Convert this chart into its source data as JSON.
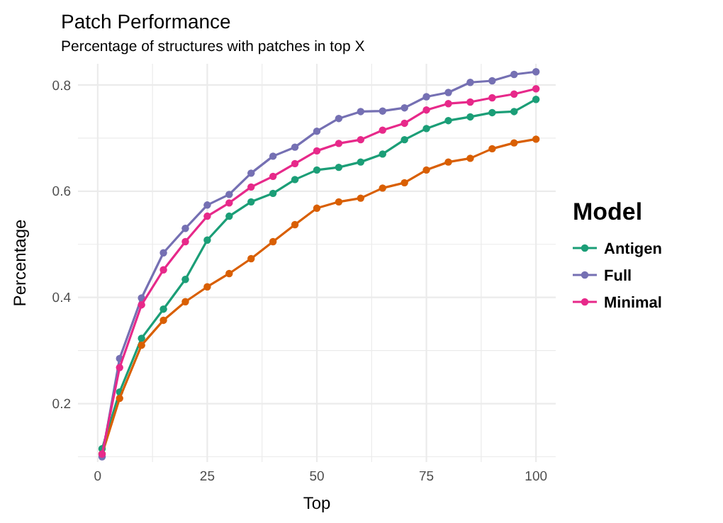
{
  "chart_data": {
    "type": "line",
    "title": "Patch Performance",
    "subtitle": "Percentage of structures with patches in top X",
    "xlabel": "Top",
    "ylabel": "Percentage",
    "legend_title": "Model",
    "legend": "right",
    "grid": true,
    "marker": "circle",
    "line_style": "solid",
    "x": [
      1,
      5,
      10,
      15,
      20,
      25,
      30,
      35,
      40,
      45,
      50,
      55,
      60,
      65,
      70,
      75,
      80,
      85,
      90,
      95,
      100
    ],
    "xlim": [
      -4.5,
      104.5
    ],
    "xticks": [
      0,
      {
        "value": 12.5,
        "label": null
      },
      25,
      {
        "value": 37.5,
        "label": null
      },
      50,
      {
        "value": 62.5,
        "label": null
      },
      75,
      {
        "value": 87.5,
        "label": null
      },
      100
    ],
    "ylim": [
      0.09,
      0.84
    ],
    "yticks": [
      {
        "value": 0.1,
        "label": null
      },
      0.2,
      {
        "value": 0.3,
        "label": null
      },
      0.4,
      {
        "value": 0.5,
        "label": null
      },
      0.6,
      {
        "value": 0.7,
        "label": null
      },
      0.8
    ],
    "series": [
      {
        "name": "Antigen",
        "color": "#1b9e77",
        "values": [
          0.115,
          0.222,
          0.323,
          0.378,
          0.434,
          0.508,
          0.553,
          0.58,
          0.596,
          0.622,
          0.64,
          0.645,
          0.655,
          0.67,
          0.697,
          0.718,
          0.733,
          0.74,
          0.748,
          0.75,
          0.773
        ]
      },
      {
        "color": "#d95f02",
        "values": [
          0.105,
          0.21,
          0.31,
          0.357,
          0.392,
          0.42,
          0.445,
          0.473,
          0.505,
          0.537,
          0.568,
          0.58,
          0.587,
          0.606,
          0.616,
          0.64,
          0.655,
          0.662,
          0.68,
          0.691,
          0.698
        ]
      },
      {
        "name": "Full",
        "color": "#7570b3",
        "values": [
          0.1,
          0.285,
          0.399,
          0.484,
          0.53,
          0.574,
          0.594,
          0.634,
          0.666,
          0.683,
          0.713,
          0.737,
          0.75,
          0.751,
          0.757,
          0.778,
          0.786,
          0.805,
          0.808,
          0.82,
          0.825
        ]
      },
      {
        "name": "Minimal",
        "color": "#e7298a",
        "values": [
          0.105,
          0.268,
          0.386,
          0.452,
          0.505,
          0.553,
          0.578,
          0.608,
          0.628,
          0.652,
          0.676,
          0.69,
          0.697,
          0.715,
          0.728,
          0.753,
          0.765,
          0.768,
          0.776,
          0.783,
          0.793
        ]
      }
    ]
  }
}
